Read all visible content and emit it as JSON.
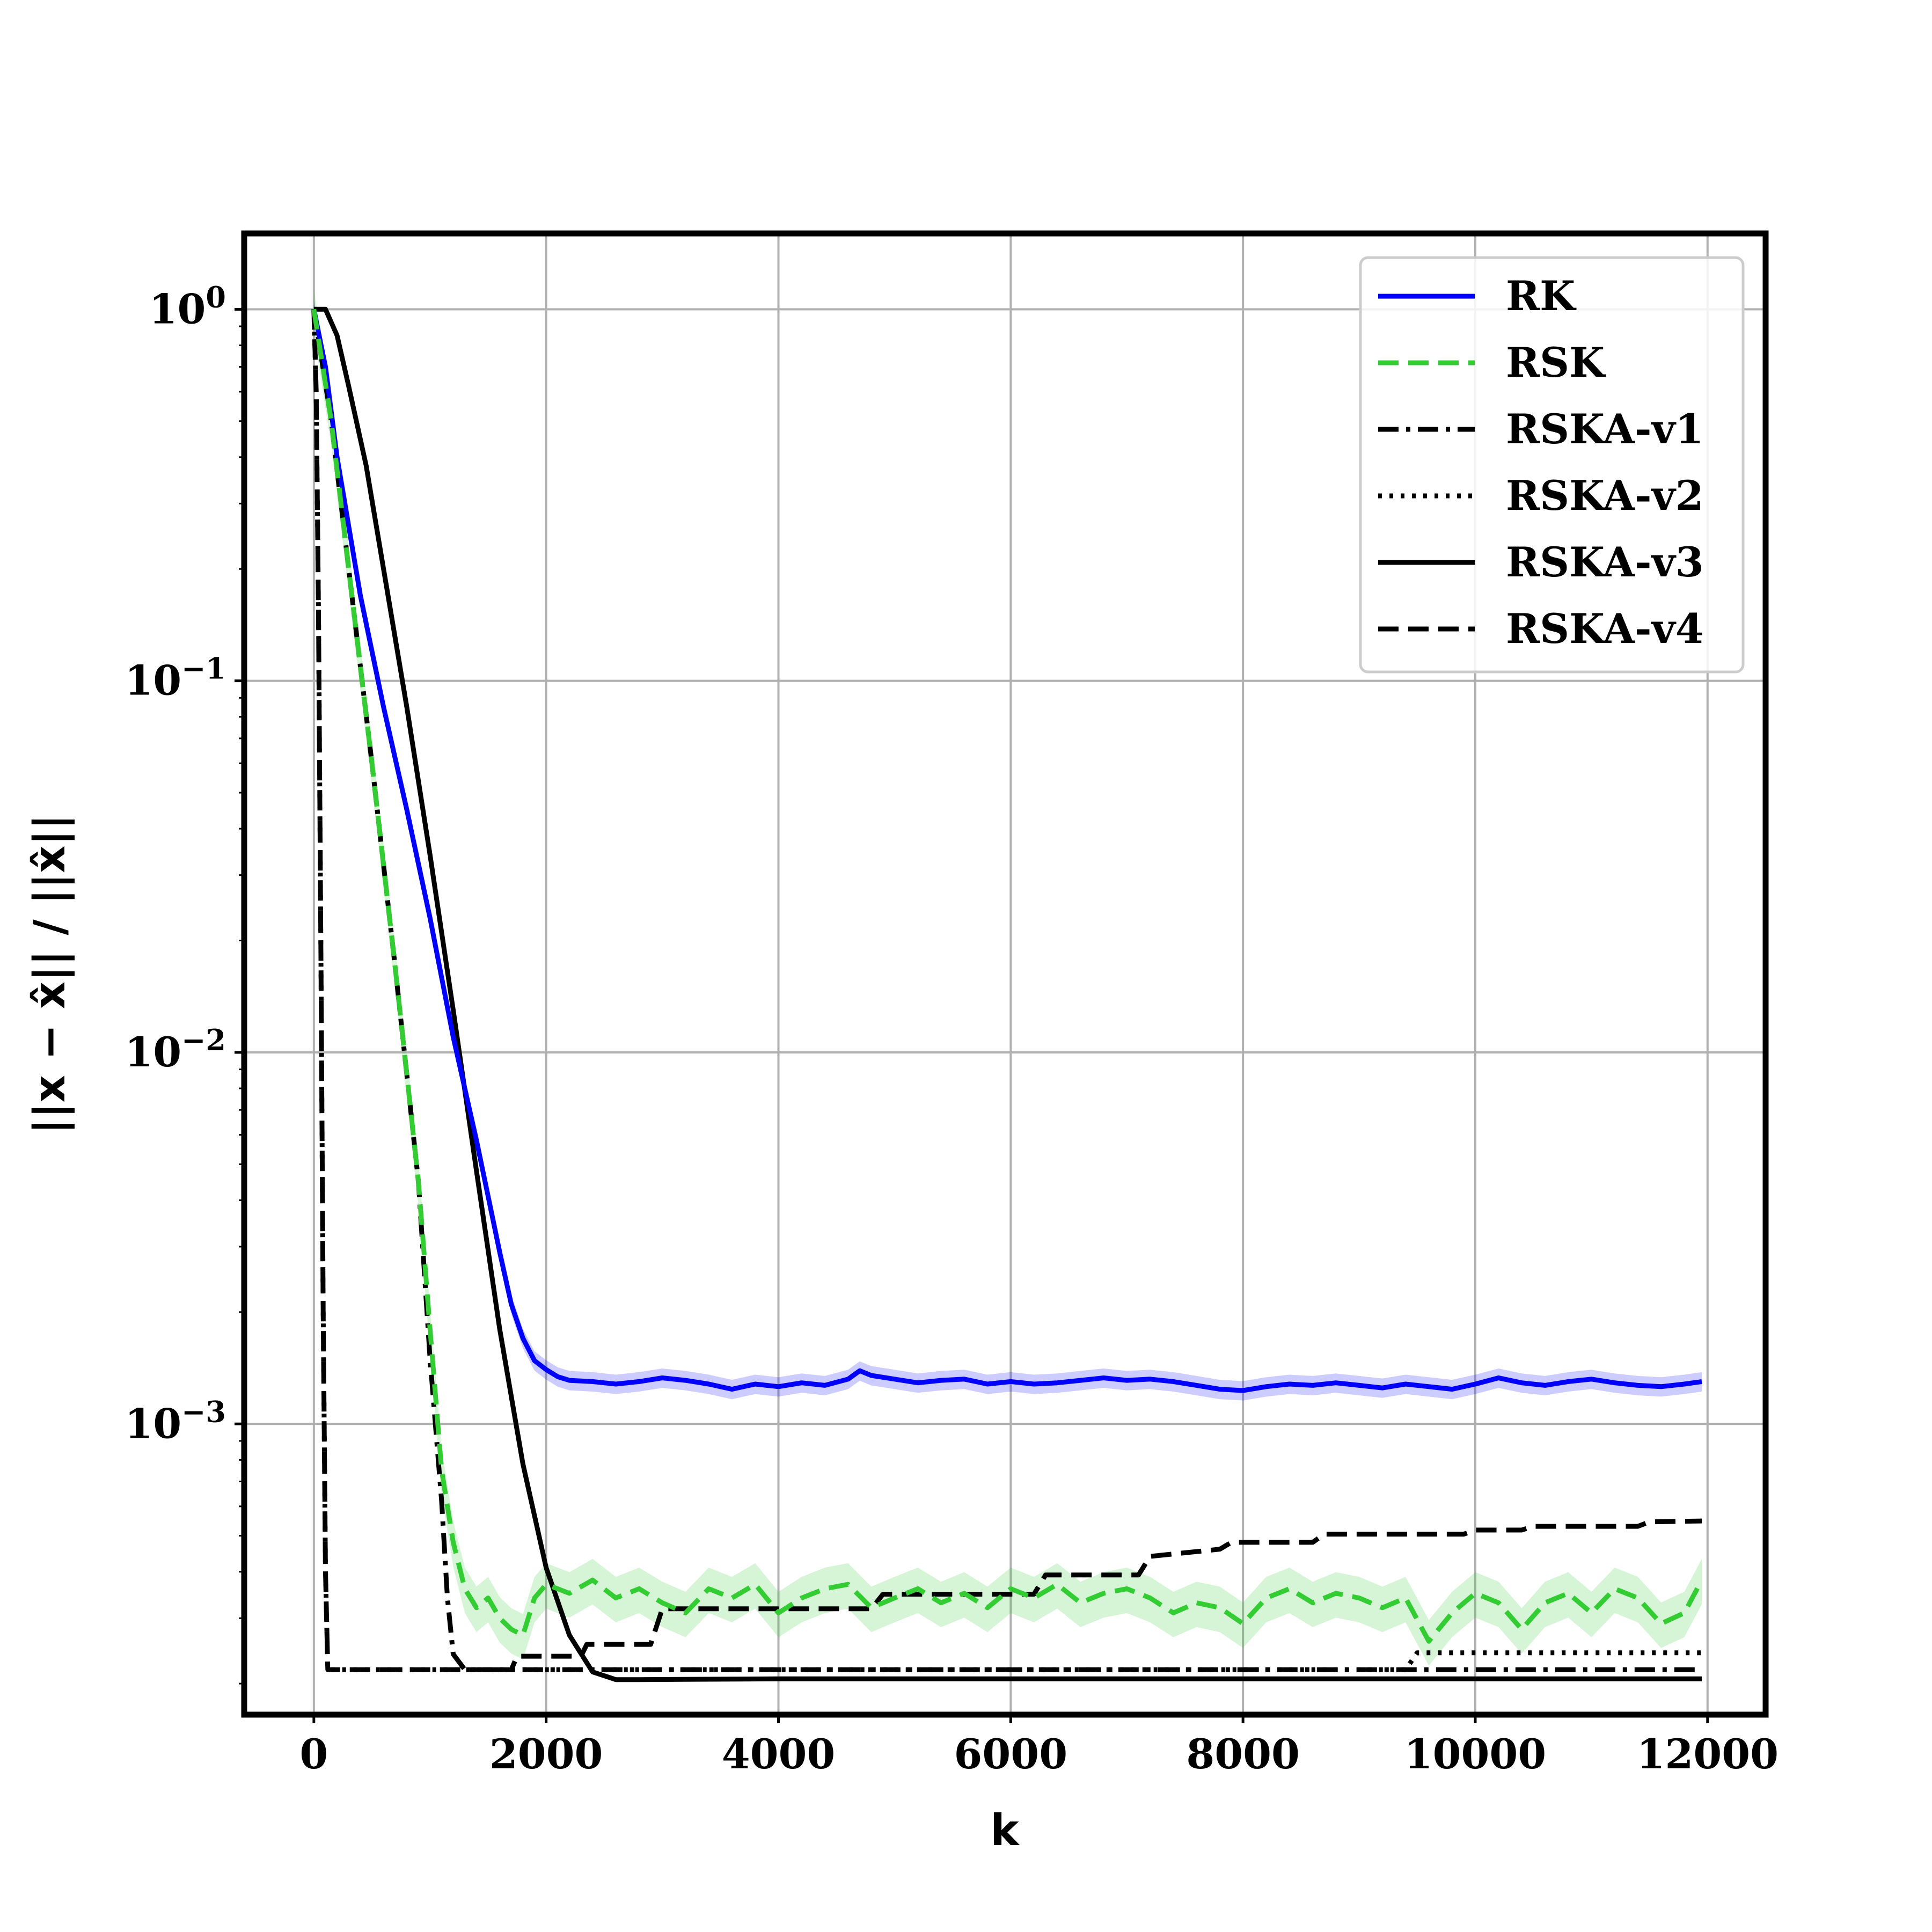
{
  "chart_data": {
    "type": "line",
    "title": "",
    "xlabel": "k",
    "ylabel": "||x − x̂|| / ||x̂||",
    "xscale": "linear",
    "yscale": "log",
    "xlim": [
      -600,
      12500
    ],
    "ylim": [
      0.000165,
      1.6
    ],
    "x_ticks": [
      0,
      2000,
      4000,
      6000,
      8000,
      10000,
      12000
    ],
    "x_tick_labels": [
      "0",
      "2000",
      "4000",
      "6000",
      "8000",
      "10000",
      "12000"
    ],
    "y_ticks": [
      1,
      0.1,
      0.01,
      0.001
    ],
    "y_tick_labels": [
      {
        "base": "10",
        "exp": "0"
      },
      {
        "base": "10",
        "exp": "−1"
      },
      {
        "base": "10",
        "exp": "−2"
      },
      {
        "base": "10",
        "exp": "−3"
      }
    ],
    "grid": true,
    "legend_position": "top-right",
    "series": [
      {
        "name": "RK",
        "color": "#0000ff",
        "style": "solid",
        "band": {
          "color": "#0000ff",
          "relative_halfwidth": 0.06
        },
        "points": [
          [
            0,
            1.0
          ],
          [
            100,
            0.7
          ],
          [
            200,
            0.4
          ],
          [
            400,
            0.17
          ],
          [
            600,
            0.085
          ],
          [
            800,
            0.045
          ],
          [
            1000,
            0.023
          ],
          [
            1200,
            0.011
          ],
          [
            1400,
            0.0058
          ],
          [
            1500,
            0.0041
          ],
          [
            1600,
            0.0029
          ],
          [
            1700,
            0.0021
          ],
          [
            1800,
            0.0017
          ],
          [
            1900,
            0.00148
          ],
          [
            2000,
            0.0014
          ],
          [
            2100,
            0.00134
          ],
          [
            2200,
            0.00131
          ],
          [
            2400,
            0.0013
          ],
          [
            2600,
            0.00128
          ],
          [
            2800,
            0.0013
          ],
          [
            3000,
            0.00133
          ],
          [
            3200,
            0.00131
          ],
          [
            3400,
            0.00128
          ],
          [
            3600,
            0.00124
          ],
          [
            3800,
            0.00128
          ],
          [
            4000,
            0.00126
          ],
          [
            4200,
            0.00129
          ],
          [
            4400,
            0.00127
          ],
          [
            4600,
            0.00132
          ],
          [
            4700,
            0.00139
          ],
          [
            4800,
            0.00135
          ],
          [
            5000,
            0.00132
          ],
          [
            5200,
            0.00129
          ],
          [
            5400,
            0.00131
          ],
          [
            5600,
            0.00132
          ],
          [
            5800,
            0.00128
          ],
          [
            6000,
            0.0013
          ],
          [
            6200,
            0.00128
          ],
          [
            6400,
            0.00129
          ],
          [
            6600,
            0.00131
          ],
          [
            6800,
            0.00133
          ],
          [
            7000,
            0.00131
          ],
          [
            7200,
            0.00132
          ],
          [
            7400,
            0.0013
          ],
          [
            7600,
            0.00127
          ],
          [
            7800,
            0.00124
          ],
          [
            8000,
            0.00123
          ],
          [
            8200,
            0.00126
          ],
          [
            8400,
            0.00128
          ],
          [
            8600,
            0.00127
          ],
          [
            8800,
            0.00129
          ],
          [
            9000,
            0.00127
          ],
          [
            9200,
            0.00125
          ],
          [
            9400,
            0.00128
          ],
          [
            9600,
            0.00126
          ],
          [
            9800,
            0.00124
          ],
          [
            10000,
            0.00128
          ],
          [
            10200,
            0.00133
          ],
          [
            10400,
            0.00129
          ],
          [
            10600,
            0.00127
          ],
          [
            10800,
            0.0013
          ],
          [
            11000,
            0.00132
          ],
          [
            11200,
            0.00129
          ],
          [
            11400,
            0.00127
          ],
          [
            11600,
            0.00126
          ],
          [
            11800,
            0.00128
          ],
          [
            11950,
            0.0013
          ]
        ]
      },
      {
        "name": "RSK",
        "color": "#33cc33",
        "style": "dashed",
        "band": {
          "color": "#33cc33",
          "relative_halfwidth": 0.14
        },
        "points": [
          [
            0,
            1.0
          ],
          [
            150,
            0.5
          ],
          [
            300,
            0.2
          ],
          [
            500,
            0.06
          ],
          [
            700,
            0.017
          ],
          [
            900,
            0.0045
          ],
          [
            1000,
            0.0018
          ],
          [
            1100,
            0.00075
          ],
          [
            1200,
            0.00048
          ],
          [
            1300,
            0.00036
          ],
          [
            1400,
            0.00032
          ],
          [
            1500,
            0.00034
          ],
          [
            1600,
            0.0003
          ],
          [
            1700,
            0.00028
          ],
          [
            1800,
            0.00027
          ],
          [
            1900,
            0.00034
          ],
          [
            2000,
            0.00037
          ],
          [
            2200,
            0.00035
          ],
          [
            2400,
            0.00038
          ],
          [
            2600,
            0.00034
          ],
          [
            2800,
            0.00036
          ],
          [
            3000,
            0.00033
          ],
          [
            3200,
            0.00031
          ],
          [
            3400,
            0.00036
          ],
          [
            3600,
            0.00034
          ],
          [
            3800,
            0.00037
          ],
          [
            4000,
            0.00031
          ],
          [
            4200,
            0.00034
          ],
          [
            4400,
            0.00036
          ],
          [
            4600,
            0.00037
          ],
          [
            4800,
            0.00032
          ],
          [
            5000,
            0.00034
          ],
          [
            5200,
            0.00036
          ],
          [
            5400,
            0.00033
          ],
          [
            5600,
            0.00035
          ],
          [
            5800,
            0.00032
          ],
          [
            6000,
            0.00036
          ],
          [
            6200,
            0.00034
          ],
          [
            6400,
            0.00037
          ],
          [
            6600,
            0.00033
          ],
          [
            6800,
            0.00035
          ],
          [
            7000,
            0.00036
          ],
          [
            7200,
            0.00034
          ],
          [
            7400,
            0.00031
          ],
          [
            7600,
            0.00033
          ],
          [
            7800,
            0.00032
          ],
          [
            8000,
            0.00029
          ],
          [
            8200,
            0.00034
          ],
          [
            8400,
            0.00036
          ],
          [
            8600,
            0.00033
          ],
          [
            8800,
            0.00035
          ],
          [
            9000,
            0.00034
          ],
          [
            9200,
            0.00032
          ],
          [
            9400,
            0.00034
          ],
          [
            9600,
            0.00026
          ],
          [
            9800,
            0.00031
          ],
          [
            10000,
            0.00035
          ],
          [
            10200,
            0.00033
          ],
          [
            10400,
            0.00028
          ],
          [
            10600,
            0.00033
          ],
          [
            10800,
            0.00035
          ],
          [
            11000,
            0.00031
          ],
          [
            11200,
            0.00036
          ],
          [
            11400,
            0.00034
          ],
          [
            11600,
            0.00029
          ],
          [
            11800,
            0.00031
          ],
          [
            11950,
            0.00038
          ]
        ]
      },
      {
        "name": "RSKA-v1",
        "color": "#000000",
        "style": "dashdot",
        "points": [
          [
            0,
            1.0
          ],
          [
            150,
            0.5
          ],
          [
            300,
            0.2
          ],
          [
            500,
            0.06
          ],
          [
            700,
            0.017
          ],
          [
            900,
            0.0045
          ],
          [
            1000,
            0.0015
          ],
          [
            1100,
            0.00062
          ],
          [
            1150,
            0.00034
          ],
          [
            1200,
            0.00024
          ],
          [
            1300,
            0.000218
          ],
          [
            1400,
            0.000218
          ],
          [
            2000,
            0.000218
          ],
          [
            4000,
            0.000218
          ],
          [
            6000,
            0.000218
          ],
          [
            8000,
            0.000218
          ],
          [
            10000,
            0.000218
          ],
          [
            11950,
            0.000218
          ]
        ]
      },
      {
        "name": "RSKA-v2",
        "color": "#000000",
        "style": "dotted",
        "points": [
          [
            0,
            1.0
          ],
          [
            20,
            0.6
          ],
          [
            40,
            0.15
          ],
          [
            60,
            0.02
          ],
          [
            80,
            0.002
          ],
          [
            100,
            0.0004
          ],
          [
            120,
            0.000218
          ],
          [
            2000,
            0.000218
          ],
          [
            4000,
            0.000218
          ],
          [
            6000,
            0.000218
          ],
          [
            8000,
            0.000218
          ],
          [
            9400,
            0.000218
          ],
          [
            9500,
            0.000242
          ],
          [
            11950,
            0.000242
          ]
        ]
      },
      {
        "name": "RSKA-v3",
        "color": "#000000",
        "style": "solid",
        "points": [
          [
            0,
            1.0
          ],
          [
            100,
            1.0
          ],
          [
            200,
            0.85
          ],
          [
            300,
            0.62
          ],
          [
            450,
            0.38
          ],
          [
            600,
            0.2
          ],
          [
            800,
            0.085
          ],
          [
            1000,
            0.034
          ],
          [
            1200,
            0.013
          ],
          [
            1400,
            0.0048
          ],
          [
            1600,
            0.0018
          ],
          [
            1800,
            0.00078
          ],
          [
            2000,
            0.00041
          ],
          [
            2200,
            0.00027
          ],
          [
            2400,
            0.000215
          ],
          [
            2600,
            0.000205
          ],
          [
            2800,
            0.000205
          ],
          [
            4000,
            0.000206
          ],
          [
            6000,
            0.000206
          ],
          [
            8000,
            0.000206
          ],
          [
            10000,
            0.000206
          ],
          [
            11950,
            0.000206
          ]
        ]
      },
      {
        "name": "RSKA-v4",
        "color": "#000000",
        "style": "dashed",
        "points": [
          [
            0,
            1.0
          ],
          [
            20,
            0.6
          ],
          [
            40,
            0.15
          ],
          [
            60,
            0.02
          ],
          [
            80,
            0.002
          ],
          [
            100,
            0.0004
          ],
          [
            120,
            0.000218
          ],
          [
            1700,
            0.000218
          ],
          [
            1750,
            0.000237
          ],
          [
            2300,
            0.000237
          ],
          [
            2350,
            0.000255
          ],
          [
            2900,
            0.000255
          ],
          [
            3000,
            0.000318
          ],
          [
            4800,
            0.000318
          ],
          [
            4900,
            0.000348
          ],
          [
            6200,
            0.000348
          ],
          [
            6300,
            0.000392
          ],
          [
            7100,
            0.000392
          ],
          [
            7200,
            0.00044
          ],
          [
            7800,
            0.00046
          ],
          [
            7900,
            0.00048
          ],
          [
            8600,
            0.00048
          ],
          [
            8700,
            0.000505
          ],
          [
            9900,
            0.000505
          ],
          [
            10000,
            0.000518
          ],
          [
            10400,
            0.000518
          ],
          [
            10500,
            0.00053
          ],
          [
            11400,
            0.00053
          ],
          [
            11500,
            0.000545
          ],
          [
            11950,
            0.000548
          ]
        ]
      }
    ]
  }
}
